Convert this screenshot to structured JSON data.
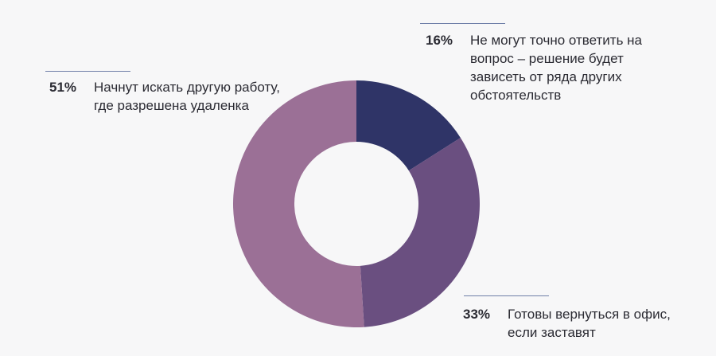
{
  "chart_data": {
    "type": "donut",
    "categories": [
      "Не могут точно ответить на вопрос – решение будет зависеть от ряда других обстоятельств",
      "Готовы вернуться в офис, если заставят",
      "Начнут искать другую работу, где разрешена удаленка"
    ],
    "values": [
      16,
      33,
      51
    ],
    "value_labels": [
      "16%",
      "33%",
      "51%"
    ],
    "colors": [
      "#2f3467",
      "#6a4f80",
      "#9b7096"
    ]
  }
}
